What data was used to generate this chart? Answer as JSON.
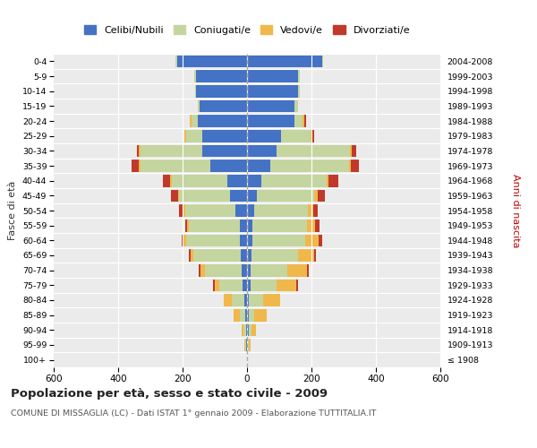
{
  "age_groups": [
    "100+",
    "95-99",
    "90-94",
    "85-89",
    "80-84",
    "75-79",
    "70-74",
    "65-69",
    "60-64",
    "55-59",
    "50-54",
    "45-49",
    "40-44",
    "35-39",
    "30-34",
    "25-29",
    "20-24",
    "15-19",
    "10-14",
    "5-9",
    "0-4"
  ],
  "birth_years": [
    "≤ 1908",
    "1909-1913",
    "1914-1918",
    "1919-1923",
    "1924-1928",
    "1929-1933",
    "1934-1938",
    "1939-1943",
    "1944-1948",
    "1949-1953",
    "1954-1958",
    "1959-1963",
    "1964-1968",
    "1969-1973",
    "1974-1978",
    "1979-1983",
    "1984-1988",
    "1989-1993",
    "1994-1998",
    "1999-2003",
    "2004-2008"
  ],
  "males": {
    "celibi": [
      0,
      2,
      3,
      5,
      8,
      14,
      18,
      20,
      22,
      22,
      35,
      52,
      62,
      115,
      138,
      138,
      152,
      148,
      157,
      158,
      218
    ],
    "coniugati": [
      0,
      3,
      8,
      18,
      38,
      72,
      112,
      148,
      168,
      158,
      158,
      158,
      172,
      215,
      192,
      52,
      20,
      5,
      5,
      5,
      5
    ],
    "vedovi": [
      0,
      2,
      5,
      18,
      25,
      15,
      15,
      8,
      8,
      5,
      5,
      5,
      5,
      5,
      5,
      5,
      5,
      0,
      0,
      0,
      0
    ],
    "divorziati": [
      0,
      0,
      0,
      0,
      0,
      5,
      5,
      5,
      5,
      8,
      12,
      22,
      22,
      22,
      8,
      0,
      0,
      0,
      0,
      0,
      0
    ]
  },
  "females": {
    "nubili": [
      0,
      2,
      5,
      5,
      5,
      10,
      12,
      15,
      18,
      18,
      22,
      30,
      45,
      72,
      92,
      105,
      148,
      148,
      158,
      158,
      232
    ],
    "coniugate": [
      0,
      3,
      8,
      18,
      45,
      82,
      112,
      142,
      162,
      168,
      168,
      178,
      202,
      245,
      228,
      92,
      25,
      10,
      5,
      5,
      5
    ],
    "vedove": [
      0,
      5,
      15,
      38,
      52,
      62,
      62,
      52,
      42,
      25,
      15,
      12,
      5,
      5,
      5,
      5,
      5,
      0,
      0,
      0,
      0
    ],
    "divorziate": [
      0,
      0,
      0,
      0,
      0,
      5,
      5,
      5,
      10,
      15,
      15,
      22,
      32,
      25,
      15,
      5,
      5,
      0,
      0,
      0,
      0
    ]
  },
  "colors": {
    "celibi": "#4472c4",
    "coniugati": "#c5d5a0",
    "vedovi": "#f0b84b",
    "divorziati": "#c0392b"
  },
  "title": "Popolazione per età, sesso e stato civile - 2009",
  "subtitle": "COMUNE DI MISSAGLIA (LC) - Dati ISTAT 1° gennaio 2009 - Elaborazione TUTTITALIA.IT",
  "ylabel_left": "Fasce di età",
  "ylabel_right": "Anni di nascita",
  "xlim": 600,
  "legend_labels": [
    "Celibi/Nubili",
    "Coniugati/e",
    "Vedovi/e",
    "Divorziati/e"
  ],
  "bg_color": "#ffffff",
  "plot_bg_color": "#ebebeb"
}
